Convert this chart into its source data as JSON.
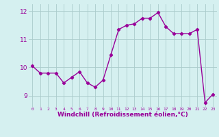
{
  "x": [
    0,
    1,
    2,
    3,
    4,
    5,
    6,
    7,
    8,
    9,
    10,
    11,
    12,
    13,
    14,
    15,
    16,
    17,
    18,
    19,
    20,
    21,
    22,
    23
  ],
  "y": [
    10.05,
    9.8,
    9.8,
    9.8,
    9.45,
    9.65,
    9.85,
    9.45,
    9.3,
    9.55,
    10.45,
    11.35,
    11.5,
    11.55,
    11.75,
    11.75,
    11.95,
    11.45,
    11.2,
    11.2,
    11.2,
    11.35,
    8.75,
    9.05
  ],
  "line_color": "#990099",
  "marker": "D",
  "markersize": 2.2,
  "linewidth": 1.0,
  "bg_color": "#d5f0f0",
  "grid_color": "#aacccc",
  "xlabel": "Windchill (Refroidissement éolien,°C)",
  "xlabel_color": "#990099",
  "tick_color": "#990099",
  "ylabel": "",
  "ylim": [
    8.6,
    12.25
  ],
  "xlim": [
    -0.5,
    23.5
  ],
  "yticks": [
    9,
    10,
    11,
    12
  ],
  "xticks": [
    0,
    1,
    2,
    3,
    4,
    5,
    6,
    7,
    8,
    9,
    10,
    11,
    12,
    13,
    14,
    15,
    16,
    17,
    18,
    19,
    20,
    21,
    22,
    23
  ],
  "title": "",
  "figsize": [
    3.2,
    2.0
  ],
  "dpi": 100
}
